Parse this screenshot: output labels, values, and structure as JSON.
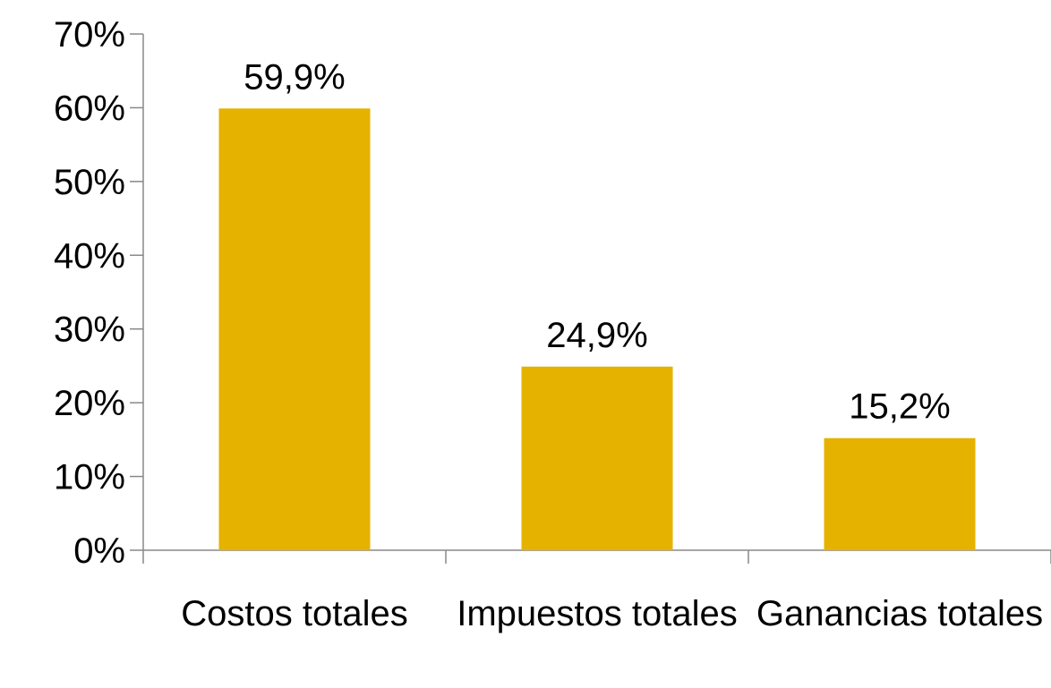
{
  "chart_data": {
    "type": "bar",
    "categories": [
      "Costos totales",
      "Impuestos totales",
      "Ganancias totales"
    ],
    "values": [
      59.9,
      24.9,
      15.2
    ],
    "value_labels": [
      "59,9%",
      "24,9%",
      "15,2%"
    ],
    "color": "#e6b200",
    "ylim": [
      0,
      70
    ],
    "yticks": [
      {
        "value": 0,
        "label": "0%"
      },
      {
        "value": 10,
        "label": "10%"
      },
      {
        "value": 20,
        "label": "20%"
      },
      {
        "value": 30,
        "label": "30%"
      },
      {
        "value": 40,
        "label": "40%"
      },
      {
        "value": 50,
        "label": "50%"
      },
      {
        "value": 60,
        "label": "60%"
      },
      {
        "value": 70,
        "label": "70%"
      }
    ],
    "grid": false
  }
}
